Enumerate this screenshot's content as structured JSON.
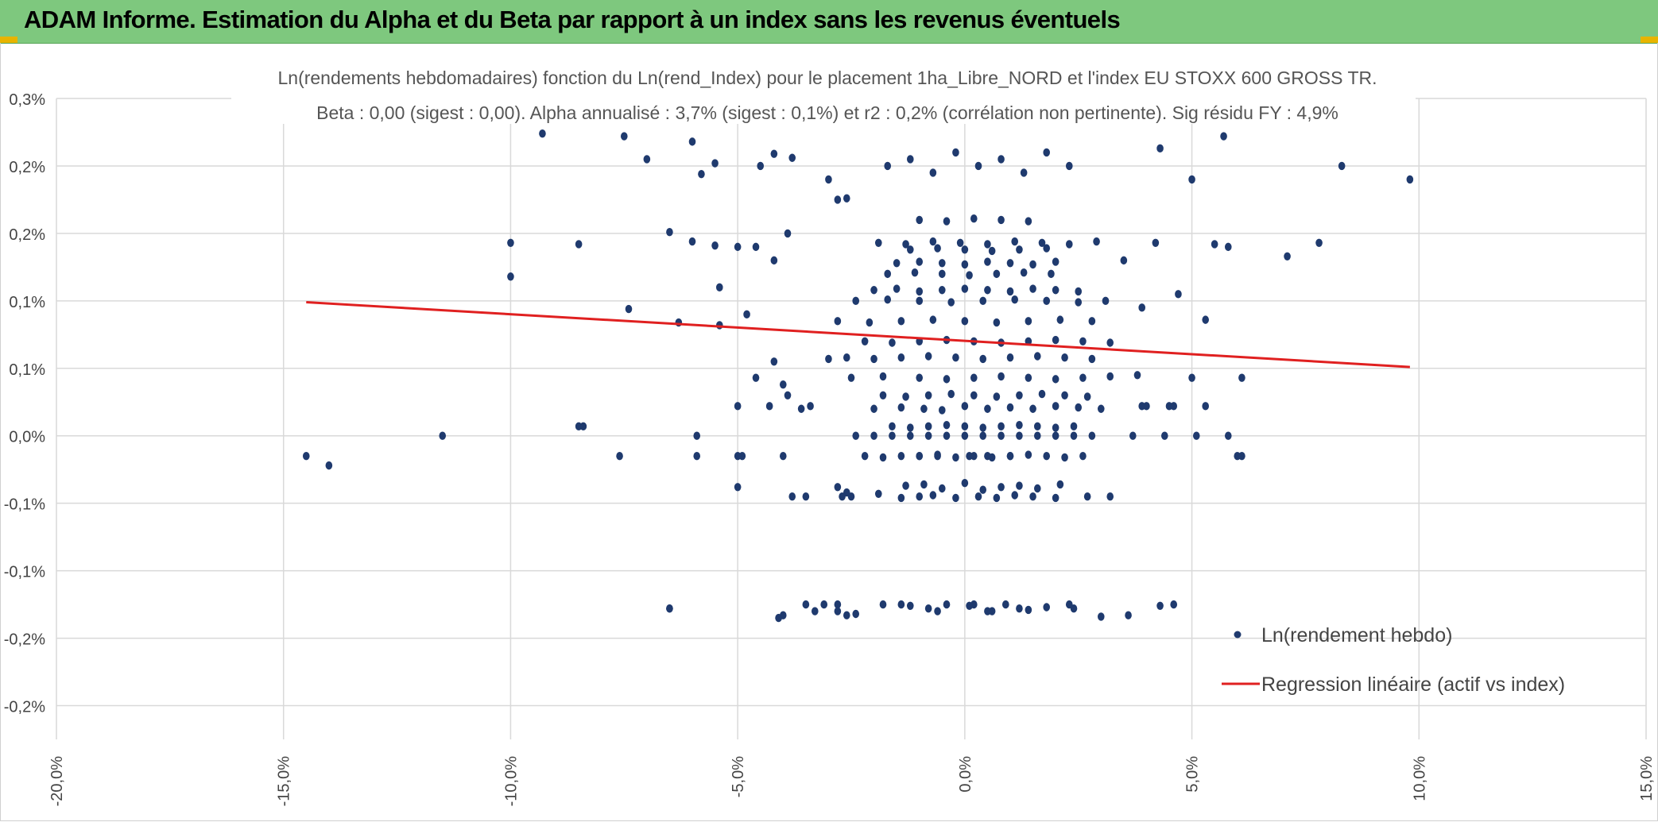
{
  "header": {
    "title": "ADAM Informe. Estimation du Alpha et du Beta par rapport à un index sans les revenus éventuels",
    "accent_color": "#7ec87e"
  },
  "chart_data": {
    "type": "scatter",
    "title": "Ln(rendements hebdomadaires) fonction du Ln(rend_Index) pour le placement 1ha_Libre_NORD et l'index EU STOXX 600 GROSS TR.",
    "subtitle": "Beta : 0,00 (sigest : 0,00). Alpha annualisé : 3,7% (sigest : 0,1%) et r2 : 0,2% (corrélation non pertinente). Sig résidu FY : 4,9%",
    "xlabel": "",
    "ylabel": "",
    "xlim": [
      -20,
      15
    ],
    "ylim": [
      -0.225,
      0.25
    ],
    "x_ticks": [
      -20,
      -15,
      -10,
      -5,
      0,
      5,
      10,
      15
    ],
    "x_tick_labels": [
      "-20,0%",
      "-15,0%",
      "-10,0%",
      "-5,0%",
      "0,0%",
      "5,0%",
      "10,0%",
      "15,0%"
    ],
    "y_ticks": [
      0.25,
      0.2,
      0.15,
      0.1,
      0.05,
      0.0,
      -0.05,
      -0.1,
      -0.15,
      -0.2
    ],
    "y_tick_labels": [
      "0,3%",
      "0,2%",
      "0,2%",
      "0,1%",
      "0,1%",
      "0,0%",
      "-0,1%",
      "-0,1%",
      "-0,2%",
      "-0,2%"
    ],
    "grid": true,
    "legend": {
      "position": "bottom-right",
      "entries": [
        "Ln(rendement hebdo)",
        "Regression linéaire (actif vs index)"
      ]
    },
    "series": [
      {
        "name": "Ln(rendement hebdo)",
        "kind": "scatter",
        "color": "#1f3a6e",
        "x": [
          -14.5,
          -14.0,
          -11.5,
          -8.4,
          -7.6,
          -6.5,
          -5.9,
          -5.0,
          -4.0,
          -3.5,
          -3.1,
          -2.8,
          -2.6,
          -1.4,
          -0.6,
          0.2,
          0.6,
          1.2,
          2.3,
          3.6,
          4.6,
          5.8,
          6.0,
          -9.3,
          -7.5,
          -7.0,
          -6.0,
          -5.8,
          -5.5,
          -4.5,
          -4.2,
          -3.8,
          -3.0,
          -2.8,
          -2.6,
          4.3,
          5.0,
          5.7,
          8.3,
          9.8,
          -10.0,
          -8.5,
          -6.5,
          -6.0,
          -5.5,
          -5.0,
          -4.6,
          -4.2,
          -3.9,
          3.5,
          4.2,
          5.5,
          5.8,
          7.1,
          7.8,
          -10.0,
          -7.4,
          -6.3,
          -5.4,
          -5.4,
          -4.8,
          3.9,
          4.7,
          5.3,
          -4.6,
          -4.2,
          -4.0,
          -3.6,
          -3.0,
          3.8,
          4.0,
          4.5,
          5.0,
          6.1,
          -5.0,
          -4.3,
          -3.9,
          -3.4,
          3.9,
          4.6,
          5.3,
          -8.5,
          -5.9,
          -4.9,
          -4.0,
          -2.8,
          -2.7,
          3.7,
          4.4,
          5.1,
          6.1,
          -5.0,
          -2.6,
          2.7,
          3.2,
          -6.5,
          -4.1,
          -3.3,
          -2.8,
          -2.4,
          -1.8,
          -1.2,
          -0.8,
          -0.4,
          0.1,
          0.5,
          0.9,
          1.4,
          1.8,
          2.4,
          3.0,
          4.3,
          -3.8,
          -3.5,
          -2.5,
          -1.9,
          -1.4,
          -1.0,
          -0.7,
          -0.2,
          0.3,
          0.7,
          1.1,
          1.5,
          2.0,
          -1.3,
          -0.9,
          -0.5,
          0.0,
          0.4,
          0.8,
          1.2,
          1.6,
          2.1,
          -1.0,
          -0.6,
          0.1,
          0.5,
          1.0,
          -2.2,
          -1.8,
          -1.4,
          -1.0,
          -0.6,
          -0.2,
          0.2,
          0.6,
          1.0,
          1.4,
          1.8,
          2.2,
          2.6,
          -2.4,
          -2.0,
          -1.6,
          -1.2,
          -0.8,
          -0.4,
          0.0,
          0.4,
          0.8,
          1.2,
          1.6,
          2.0,
          2.4,
          2.8,
          -1.6,
          -1.2,
          -0.8,
          -0.4,
          0.0,
          0.4,
          0.8,
          1.2,
          1.6,
          2.0,
          2.4,
          -2.0,
          -1.4,
          -0.9,
          -0.5,
          0.0,
          0.5,
          1.0,
          1.5,
          2.0,
          2.5,
          3.0,
          -1.8,
          -1.3,
          -0.8,
          -0.3,
          0.2,
          0.7,
          1.2,
          1.7,
          2.2,
          2.7,
          -2.5,
          -1.8,
          -1.0,
          -0.4,
          0.2,
          0.8,
          1.4,
          2.0,
          2.6,
          3.2,
          -2.6,
          -2.0,
          -1.4,
          -0.8,
          -0.2,
          0.4,
          1.0,
          1.6,
          2.2,
          2.8,
          -2.2,
          -1.6,
          -1.0,
          -0.4,
          0.2,
          0.8,
          1.4,
          2.0,
          2.6,
          3.2,
          -2.8,
          -2.1,
          -1.4,
          -0.7,
          0.0,
          0.7,
          1.4,
          2.1,
          2.8,
          -2.4,
          -1.7,
          -1.0,
          -0.3,
          0.4,
          1.1,
          1.8,
          2.5,
          3.1,
          -2.0,
          -1.5,
          -1.0,
          -0.5,
          0.0,
          0.5,
          1.0,
          1.5,
          2.0,
          2.5,
          -1.7,
          -1.1,
          -0.5,
          0.1,
          0.7,
          1.3,
          1.9,
          -1.5,
          -1.0,
          -0.5,
          0.0,
          0.5,
          1.0,
          1.5,
          2.0,
          -1.2,
          -0.6,
          0.0,
          0.6,
          1.2,
          1.8,
          -1.9,
          -1.3,
          -0.7,
          -0.1,
          0.5,
          1.1,
          1.7,
          2.3,
          2.9,
          -1.0,
          -0.4,
          0.2,
          0.8,
          1.4,
          -1.7,
          -1.2,
          -0.7,
          -0.2,
          0.3,
          0.8,
          1.3,
          1.8,
          2.3
        ],
        "y": [
          -0.015,
          -0.022,
          0.0,
          0.007,
          -0.015,
          -0.128,
          0.0,
          -0.038,
          -0.133,
          -0.125,
          -0.125,
          -0.125,
          -0.133,
          -0.125,
          -0.13,
          -0.125,
          -0.13,
          -0.128,
          -0.125,
          -0.133,
          -0.125,
          0.0,
          -0.015,
          0.224,
          0.222,
          0.205,
          0.218,
          0.194,
          0.202,
          0.2,
          0.209,
          0.206,
          0.19,
          0.175,
          0.176,
          0.213,
          0.19,
          0.222,
          0.2,
          0.19,
          0.143,
          0.142,
          0.151,
          0.144,
          0.141,
          0.14,
          0.14,
          0.13,
          0.15,
          0.13,
          0.143,
          0.142,
          0.14,
          0.133,
          0.143,
          0.118,
          0.094,
          0.084,
          0.082,
          0.11,
          0.09,
          0.095,
          0.105,
          0.086,
          0.043,
          0.055,
          0.038,
          0.02,
          0.057,
          0.045,
          0.022,
          0.022,
          0.043,
          0.043,
          0.022,
          0.022,
          0.03,
          0.022,
          0.022,
          0.022,
          0.022,
          0.007,
          -0.015,
          -0.015,
          -0.015,
          -0.038,
          -0.045,
          0.0,
          0.0,
          0.0,
          -0.015,
          -0.015,
          -0.042,
          -0.045,
          -0.045,
          -0.128,
          -0.135,
          -0.13,
          -0.13,
          -0.132,
          -0.125,
          -0.126,
          -0.128,
          -0.125,
          -0.126,
          -0.13,
          -0.125,
          -0.129,
          -0.127,
          -0.128,
          -0.134,
          -0.126,
          -0.045,
          -0.045,
          -0.045,
          -0.043,
          -0.046,
          -0.045,
          -0.044,
          -0.046,
          -0.045,
          -0.046,
          -0.044,
          -0.045,
          -0.046,
          -0.037,
          -0.036,
          -0.039,
          -0.035,
          -0.04,
          -0.038,
          -0.037,
          -0.039,
          -0.036,
          -0.015,
          -0.015,
          -0.015,
          -0.015,
          -0.015,
          -0.015,
          -0.016,
          -0.015,
          -0.015,
          -0.014,
          -0.016,
          -0.015,
          -0.016,
          -0.015,
          -0.014,
          -0.015,
          -0.016,
          -0.015,
          0.0,
          0.0,
          0.0,
          0.0,
          0.0,
          0.0,
          0.0,
          0.0,
          0.0,
          0.0,
          0.0,
          0.0,
          0.0,
          0.0,
          0.007,
          0.006,
          0.007,
          0.008,
          0.007,
          0.006,
          0.007,
          0.008,
          0.007,
          0.006,
          0.007,
          0.02,
          0.021,
          0.02,
          0.019,
          0.022,
          0.02,
          0.021,
          0.02,
          0.022,
          0.021,
          0.02,
          0.03,
          0.029,
          0.03,
          0.031,
          0.03,
          0.029,
          0.03,
          0.031,
          0.03,
          0.029,
          0.043,
          0.044,
          0.043,
          0.042,
          0.043,
          0.044,
          0.043,
          0.042,
          0.043,
          0.044,
          0.058,
          0.057,
          0.058,
          0.059,
          0.058,
          0.057,
          0.058,
          0.059,
          0.058,
          0.057,
          0.07,
          0.069,
          0.07,
          0.071,
          0.07,
          0.069,
          0.07,
          0.071,
          0.07,
          0.069,
          0.085,
          0.084,
          0.085,
          0.086,
          0.085,
          0.084,
          0.085,
          0.086,
          0.085,
          0.1,
          0.101,
          0.1,
          0.099,
          0.1,
          0.101,
          0.1,
          0.099,
          0.1,
          0.108,
          0.109,
          0.107,
          0.108,
          0.109,
          0.108,
          0.107,
          0.109,
          0.108,
          0.107,
          0.12,
          0.121,
          0.12,
          0.119,
          0.12,
          0.121,
          0.12,
          0.128,
          0.129,
          0.128,
          0.127,
          0.129,
          0.128,
          0.127,
          0.129,
          0.138,
          0.139,
          0.138,
          0.137,
          0.138,
          0.139,
          0.143,
          0.142,
          0.144,
          0.143,
          0.142,
          0.144,
          0.143,
          0.142,
          0.144,
          0.16,
          0.159,
          0.161,
          0.16,
          0.159,
          0.2,
          0.205,
          0.195,
          0.21,
          0.2,
          0.205,
          0.195,
          0.21,
          0.2
        ]
      },
      {
        "name": "Regression linéaire (actif vs index)",
        "kind": "line",
        "color": "#e02020",
        "x": [
          -14.5,
          9.8
        ],
        "y": [
          0.099,
          0.051
        ]
      }
    ]
  }
}
